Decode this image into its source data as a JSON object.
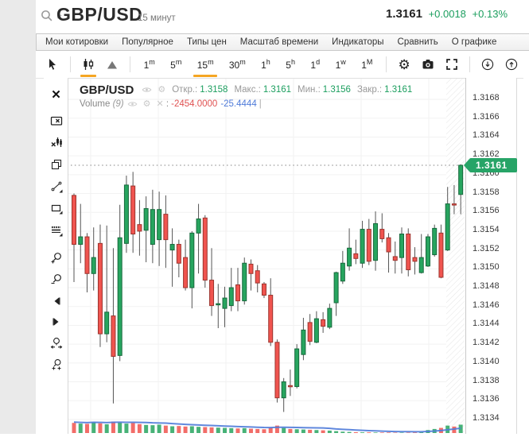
{
  "header": {
    "symbol": "GBP/USD",
    "timeframe_label": "15 минут",
    "price": "1.3161",
    "change_abs": "+0.0018",
    "change_pct": "+0.13%"
  },
  "menu": {
    "items": [
      "Мои котировки",
      "Популярное",
      "Типы цен",
      "Масштаб времени",
      "Индикаторы",
      "Сравнить",
      "О графике"
    ]
  },
  "toolbar": {
    "chart_types": [
      {
        "name": "candles-type",
        "active": true
      },
      {
        "name": "area-type",
        "active": false
      }
    ],
    "timeframes": [
      {
        "base": "1",
        "sup": "m",
        "active": false
      },
      {
        "base": "5",
        "sup": "m",
        "active": false
      },
      {
        "base": "15",
        "sup": "m",
        "active": true
      },
      {
        "base": "30",
        "sup": "m",
        "active": false
      },
      {
        "base": "1",
        "sup": "h",
        "active": false
      },
      {
        "base": "5",
        "sup": "h",
        "active": false
      },
      {
        "base": "1",
        "sup": "d",
        "active": false
      },
      {
        "base": "1",
        "sup": "w",
        "active": false
      },
      {
        "base": "1",
        "sup": "M",
        "active": false
      }
    ],
    "actions": [
      "settings",
      "snapshot",
      "fullscreen"
    ],
    "io": [
      "save-chart",
      "load-chart"
    ]
  },
  "sidebar": {
    "tools": [
      "close",
      "erase-drawing",
      "erase-indicator",
      "duplicate",
      "trend-line",
      "rectangle",
      "horizontal-lines",
      "zoom-in",
      "zoom-out",
      "pan-left",
      "pan-right",
      "zoom-range",
      "zoom-reset"
    ]
  },
  "legend": {
    "symbol": "GBP/USD",
    "open_label": "Откр.:",
    "open": "1.3158",
    "high_label": "Макс.:",
    "high": "1.3161",
    "low_label": "Мин.:",
    "low": "1.3156",
    "close_label": "Закр.:",
    "close": "1.3161",
    "volume_label": "Volume",
    "volume_period": "(9)",
    "volume_value1": "-2454.0000",
    "volume_value2": "-25.4444",
    "volume_tail": "|"
  },
  "axis": {
    "labels": [
      "1.3168",
      "1.3166",
      "1.3164",
      "1.3162",
      "1.3160",
      "1.3158",
      "1.3156",
      "1.3154",
      "1.3152",
      "1.3150",
      "1.3148",
      "1.3146",
      "1.3144",
      "1.3142",
      "1.3140",
      "1.3138",
      "1.3136",
      "1.3134"
    ]
  },
  "price_tag": "1.3161",
  "colors": {
    "up_fill": "#27a55f",
    "up_border": "#17693c",
    "down_fill": "#f0544f",
    "down_border": "#9c352e",
    "wick": "#555555",
    "grid": "#f2f2f2",
    "dotted_line": "#9a9a9a",
    "accent_orange": "#f5a623",
    "price_tag_bg": "#27a467",
    "value_green": "#1b9e5e",
    "vol_ma_blue": "#4f7bd9"
  },
  "chart_data": {
    "type": "candlestick",
    "symbol": "GBP/USD",
    "interval": "15 минут",
    "current_price": 1.3161,
    "price_axis": {
      "min": 1.3134,
      "max": 1.3168,
      "step": 0.0002
    },
    "last_bar": {
      "open": 1.3158,
      "high": 1.3161,
      "low": 1.3156,
      "close": 1.3161
    },
    "volume_ma_period": 9,
    "candles": [
      [
        1.31578,
        1.3158,
        1.31486,
        1.31526,
        75
      ],
      [
        1.31526,
        1.31569,
        1.31506,
        1.31534,
        70
      ],
      [
        1.31534,
        1.31538,
        1.31475,
        1.31495,
        68
      ],
      [
        1.31495,
        1.31544,
        1.31477,
        1.31512,
        80
      ],
      [
        1.31527,
        1.31547,
        1.31417,
        1.31431,
        72
      ],
      [
        1.31431,
        1.31546,
        1.31422,
        1.31454,
        65
      ],
      [
        1.3145,
        1.31522,
        1.31357,
        1.31407,
        85
      ],
      [
        1.31408,
        1.31568,
        1.31402,
        1.31533,
        78
      ],
      [
        1.31527,
        1.31599,
        1.31517,
        1.31589,
        70
      ],
      [
        1.31588,
        1.31603,
        1.31517,
        1.31537,
        74
      ],
      [
        1.31547,
        1.31573,
        1.31514,
        1.3154,
        66
      ],
      [
        1.31541,
        1.31577,
        1.31507,
        1.31564,
        60
      ],
      [
        1.31526,
        1.31584,
        1.31506,
        1.31563,
        58
      ],
      [
        1.31531,
        1.31582,
        1.31503,
        1.31563,
        62
      ],
      [
        1.31558,
        1.31578,
        1.31501,
        1.31531,
        55
      ],
      [
        1.3152,
        1.31543,
        1.31481,
        1.31526,
        50
      ],
      [
        1.31526,
        1.31531,
        1.31491,
        1.31506,
        52
      ],
      [
        1.31512,
        1.31531,
        1.31477,
        1.3148,
        48
      ],
      [
        1.3148,
        1.3154,
        1.31458,
        1.31538,
        50
      ],
      [
        1.31538,
        1.31569,
        1.31495,
        1.31553,
        46
      ],
      [
        1.31554,
        1.31557,
        1.3148,
        1.31488,
        44
      ],
      [
        1.31488,
        1.31522,
        1.3145,
        1.31461,
        42
      ],
      [
        1.31462,
        1.31484,
        1.31437,
        1.31463,
        40
      ],
      [
        1.31458,
        1.31481,
        1.31438,
        1.31469,
        38
      ],
      [
        1.31461,
        1.31501,
        1.31455,
        1.3148,
        36
      ],
      [
        1.31483,
        1.31501,
        1.31455,
        1.31466,
        34
      ],
      [
        1.31466,
        1.31512,
        1.31462,
        1.31506,
        36
      ],
      [
        1.31505,
        1.3151,
        1.31477,
        1.31495,
        32
      ],
      [
        1.31498,
        1.31504,
        1.31475,
        1.31485,
        30
      ],
      [
        1.31484,
        1.31486,
        1.31469,
        1.31472,
        28
      ],
      [
        1.31472,
        1.3149,
        1.31418,
        1.31422,
        40
      ],
      [
        1.31422,
        1.31425,
        1.31358,
        1.31363,
        55
      ],
      [
        1.31363,
        1.31384,
        1.31348,
        1.3138,
        38
      ],
      [
        1.31376,
        1.31393,
        1.31365,
        1.31375,
        30
      ],
      [
        1.31375,
        1.3142,
        1.31373,
        1.31415,
        28
      ],
      [
        1.31409,
        1.31448,
        1.31403,
        1.31435,
        26
      ],
      [
        1.31443,
        1.31452,
        1.31419,
        1.31423,
        24
      ],
      [
        1.31422,
        1.31455,
        1.31421,
        1.31447,
        22
      ],
      [
        1.31446,
        1.31454,
        1.31432,
        1.31439,
        20
      ],
      [
        1.31438,
        1.31463,
        1.31436,
        1.31458,
        18
      ],
      [
        1.31464,
        1.31497,
        1.3145,
        1.31496,
        14
      ],
      [
        1.31487,
        1.31519,
        1.31484,
        1.31506,
        10
      ],
      [
        1.31503,
        1.31543,
        1.31498,
        1.31522,
        8
      ],
      [
        1.31516,
        1.31531,
        1.31505,
        1.31511,
        6
      ],
      [
        1.31506,
        1.31551,
        1.31501,
        1.31542,
        5
      ],
      [
        1.31542,
        1.31553,
        1.31504,
        1.31508,
        5
      ],
      [
        1.31509,
        1.31561,
        1.31498,
        1.31548,
        4
      ],
      [
        1.31542,
        1.31559,
        1.31528,
        1.31532,
        4
      ],
      [
        1.31533,
        1.31538,
        1.31496,
        1.31518,
        4
      ],
      [
        1.31513,
        1.31529,
        1.31495,
        1.31509,
        3
      ],
      [
        1.31512,
        1.31544,
        1.31495,
        1.31537,
        3
      ],
      [
        1.31537,
        1.31543,
        1.31492,
        1.31499,
        3
      ],
      [
        1.31512,
        1.31523,
        1.31494,
        1.31508,
        4
      ],
      [
        1.31496,
        1.31537,
        1.31495,
        1.31512,
        6
      ],
      [
        1.31503,
        1.31537,
        1.31502,
        1.31534,
        22
      ],
      [
        1.31515,
        1.31547,
        1.31513,
        1.31543,
        30
      ],
      [
        1.31538,
        1.31547,
        1.3149,
        1.31491,
        38
      ],
      [
        1.3152,
        1.31587,
        1.31519,
        1.31569,
        55
      ],
      [
        1.31569,
        1.31589,
        1.31558,
        1.31568,
        48
      ],
      [
        1.31579,
        1.31611,
        1.31558,
        1.3161,
        62
      ]
    ]
  }
}
